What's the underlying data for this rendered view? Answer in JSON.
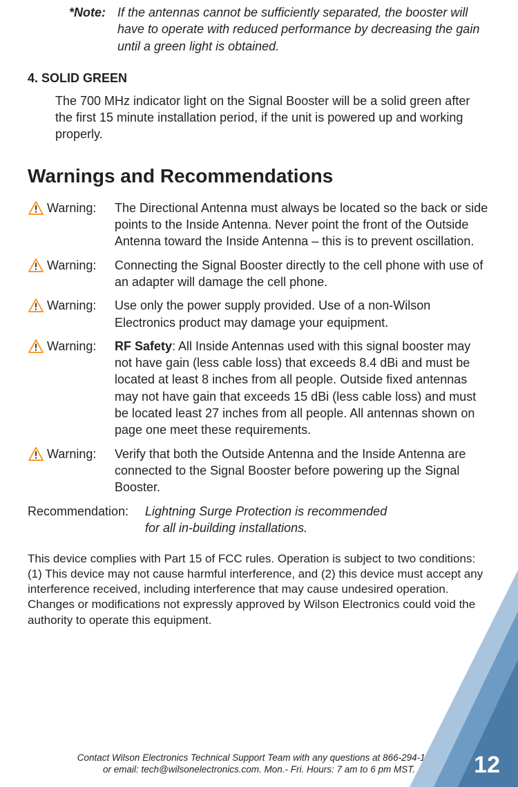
{
  "note": {
    "label": "*Note:",
    "text": "If the antennas cannot be sufficiently separated, the booster will have to operate with reduced performance by decreasing the gain until a green light is obtained."
  },
  "section4": {
    "heading": "4. SOLID GREEN",
    "body": "The 700 MHz indicator light on the Signal Booster will be a solid green after the first 15 minute installation period, if the unit is powered up and working properly."
  },
  "warnings_heading": "Warnings and Recommendations",
  "warnings": [
    {
      "label": "Warning:",
      "text": "The Directional Antenna must always be located so the back or side points to the Inside Antenna. Never point the front of the Outside Antenna toward the Inside Antenna – this is to prevent oscillation."
    },
    {
      "label": "Warning:",
      "text": "Connecting the Signal Booster directly to the cell phone with use of an adapter will damage the cell phone."
    },
    {
      "label": "Warning:",
      "text": "Use only the power supply provided. Use of a non-Wilson Electronics product may damage your equipment."
    },
    {
      "label": "Warning:",
      "bold_prefix": "RF Safety",
      "text": ":  All Inside Antennas used with this signal booster may not have gain (less cable loss) that exceeds 8.4 dBi and must be located at least 8 inches from all people. Outside fixed antennas may not have gain that exceeds 15 dBi (less cable loss) and must be located least 27 inches from all people. All antennas shown on page one meet these requirements."
    },
    {
      "label": "Warning:",
      "text": "Verify that both the Outside Antenna and the Inside Antenna are connected to the Signal Booster before powering up the Signal Booster."
    }
  ],
  "recommendation": {
    "label": "Recommendation:",
    "text_line1": "Lightning Surge Protection is recommended",
    "text_line2": "for all in-building installations."
  },
  "fcc": "This device complies with Part 15 of FCC rules. Operation is subject to two conditions: (1) This device may not cause harmful interference, and (2) this device must accept any interference received, including interference that may cause undesired operation. Changes or modifications not expressly approved by Wilson Electronics could void the authority to operate this equipment.",
  "footer": {
    "line1": "Contact Wilson Electronics Technical Support Team with any questions at 866-294-1660",
    "line2": "or email: tech@wilsonelectronics.com.    Mon.- Fri. Hours: 7 am to 6 pm MST."
  },
  "page_number": "12",
  "colors": {
    "warn_triangle_stroke": "#f7941e",
    "warn_triangle_fill": "#ffffff",
    "warn_bang": "#231f20",
    "corner_dark": "#4a7ba6",
    "corner_mid": "#6d9bc4",
    "corner_light": "#a9c5dd"
  }
}
